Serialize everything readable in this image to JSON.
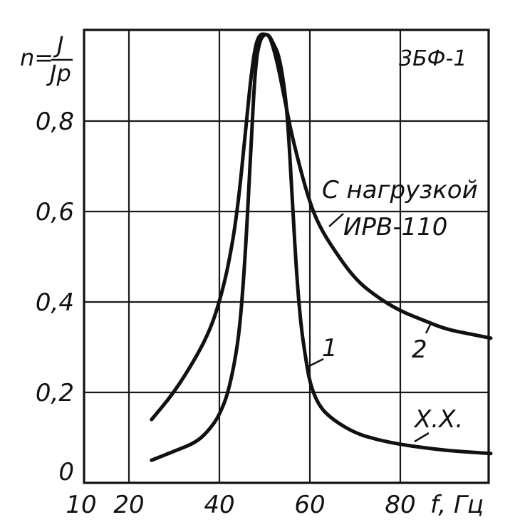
{
  "chart_data": {
    "type": "line",
    "ylabel_lhs": "n=",
    "ylabel_num": "J",
    "ylabel_den": "Jp",
    "xlabel": "f, Гц",
    "tag": "3БФ-1",
    "xlim": [
      10,
      100
    ],
    "ylim": [
      0,
      1.0
    ],
    "x_ticks": [
      10,
      20,
      40,
      60,
      80
    ],
    "y_ticks": [
      0,
      0.2,
      0.4,
      0.6,
      0.8
    ],
    "x_tick_labels": [
      "10",
      "20",
      "40",
      "60",
      "80"
    ],
    "y_tick_labels": [
      "0",
      "0,2",
      "0,4",
      "0,6",
      "0,8"
    ],
    "grid": true,
    "series": [
      {
        "name": "1",
        "x": [
          25,
          30,
          35,
          38,
          40,
          42,
          44,
          45,
          46,
          47,
          48,
          49,
          50,
          51,
          52,
          53,
          54,
          55,
          56,
          57,
          58,
          59,
          60,
          62,
          65,
          70,
          75,
          80,
          85,
          90,
          95,
          100
        ],
        "y": [
          0.05,
          0.07,
          0.09,
          0.12,
          0.15,
          0.2,
          0.3,
          0.4,
          0.55,
          0.75,
          0.93,
          0.98,
          1.0,
          0.99,
          0.97,
          0.95,
          0.9,
          0.82,
          0.65,
          0.47,
          0.35,
          0.28,
          0.22,
          0.17,
          0.14,
          0.11,
          0.095,
          0.085,
          0.078,
          0.072,
          0.068,
          0.065
        ]
      },
      {
        "name": "2",
        "x": [
          25,
          30,
          35,
          38,
          40,
          42,
          44,
          46,
          47,
          48,
          49,
          50,
          51,
          52,
          53,
          54,
          55,
          56,
          58,
          60,
          62,
          65,
          70,
          75,
          80,
          85,
          90,
          95,
          100
        ],
        "y": [
          0.14,
          0.2,
          0.28,
          0.34,
          0.4,
          0.48,
          0.6,
          0.8,
          0.9,
          0.97,
          1.0,
          1.0,
          0.99,
          0.96,
          0.92,
          0.87,
          0.82,
          0.77,
          0.69,
          0.62,
          0.57,
          0.52,
          0.45,
          0.41,
          0.38,
          0.36,
          0.34,
          0.33,
          0.32
        ]
      }
    ],
    "annotations": [
      {
        "text": "С нагрузкой",
        "target": "2"
      },
      {
        "text": "ИРВ-110",
        "target": "2"
      },
      {
        "text": "Х.Х.",
        "target": "1"
      },
      {
        "text": "1",
        "target": "1"
      },
      {
        "text": "2",
        "target": "2"
      }
    ]
  }
}
